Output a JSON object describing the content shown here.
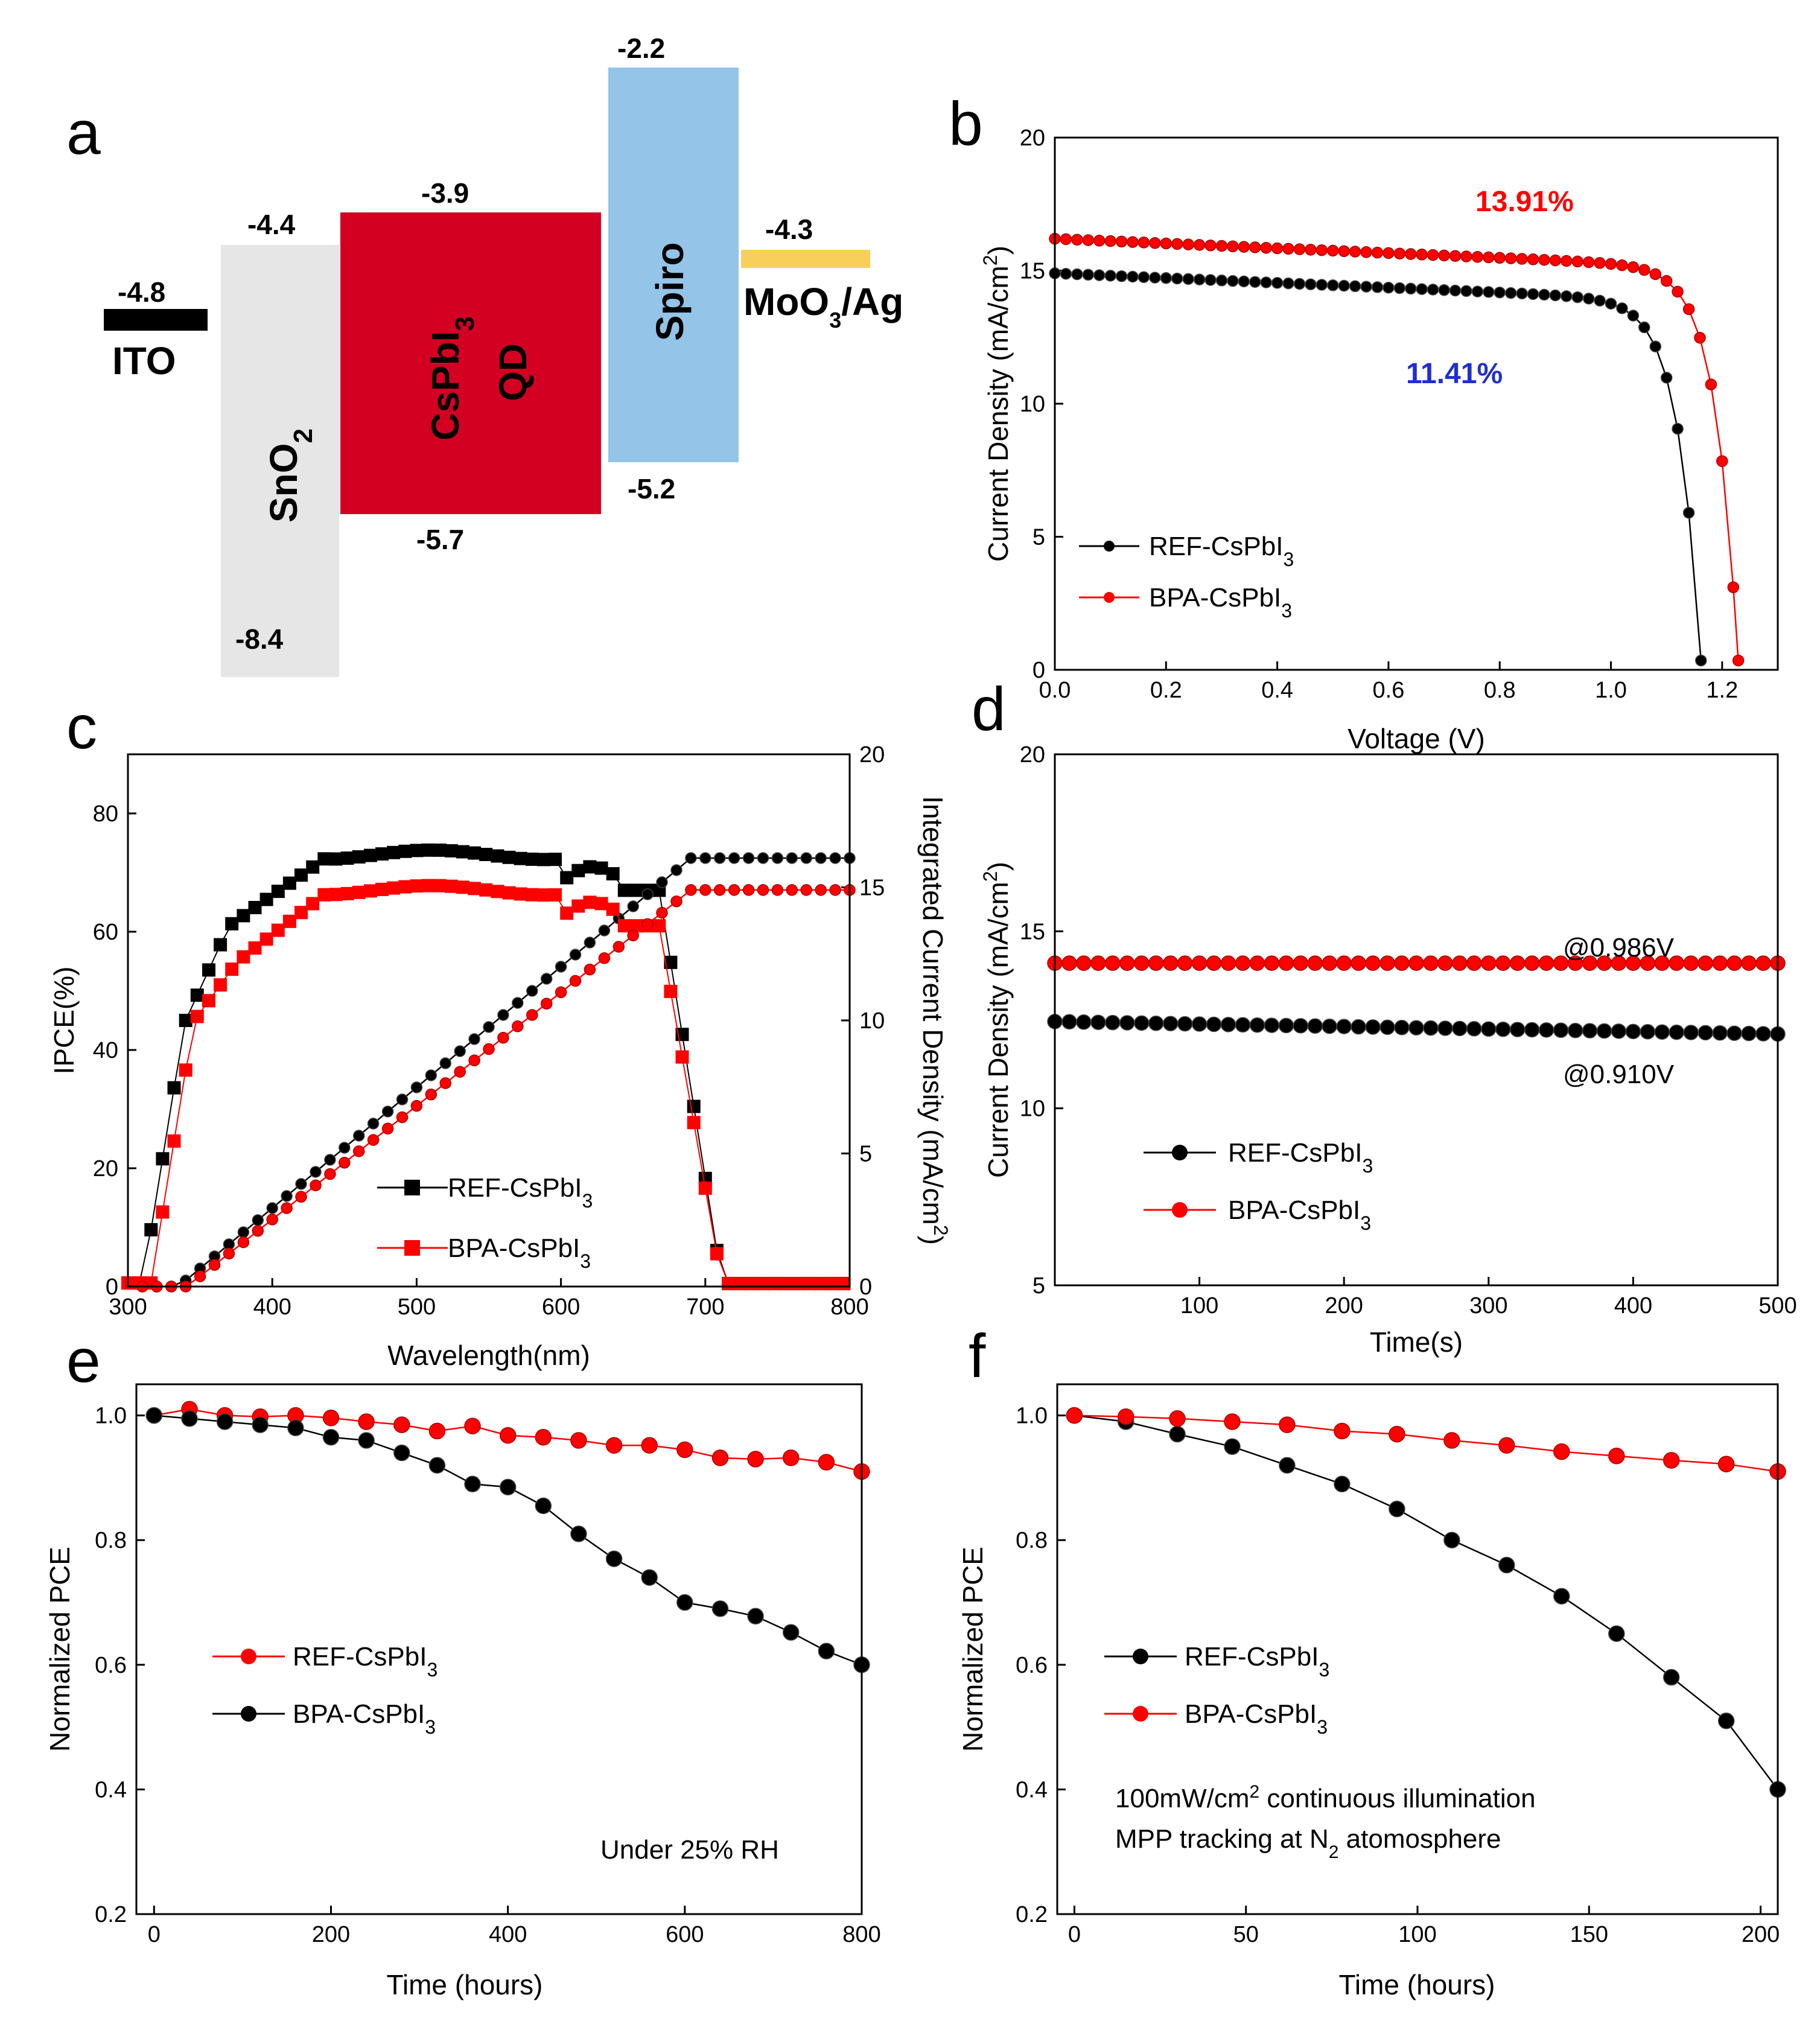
{
  "colors": {
    "ref": "#000000",
    "bpa": "#ff0000",
    "ito": "#000000",
    "sno2": "#e6e6e6",
    "qd": "#d40022",
    "spiro": "#94c4e8",
    "moo3": "#f7cf5a",
    "blue_label": "#1f2fd0"
  },
  "panel_a": {
    "label": "a",
    "layers": [
      {
        "name": "ITO",
        "level": "-4.8"
      },
      {
        "name": "SnO",
        "sub": "2",
        "top": "-4.4",
        "bottom": "-8.4"
      },
      {
        "name_line1": "CsPbI",
        "sub": "3",
        "name_line2": "QD",
        "top": "-3.9",
        "bottom": "-5.7"
      },
      {
        "name": "Spiro",
        "top": "-2.2",
        "bottom": "-5.2"
      },
      {
        "name": "MoO",
        "sub": "3",
        "suffix": "/Ag",
        "level": "-4.3"
      }
    ]
  },
  "chart_data": [
    {
      "id": "b",
      "type": "line",
      "label": "b",
      "xlabel": "Voltage (V)",
      "ylabel": "Current Density (mA/cm",
      "ylabel_sup": "2",
      "ylabel_end": ")",
      "xlim": [
        0,
        1.3
      ],
      "ylim": [
        0,
        20
      ],
      "xticks": [
        "0.0",
        "0.2",
        "0.4",
        "0.6",
        "0.8",
        "1.0",
        "1.2"
      ],
      "yticks": [
        "0",
        "5",
        "10",
        "15",
        "20"
      ],
      "annotations": [
        {
          "text": "13.91%",
          "color": "red"
        },
        {
          "text": "11.41%",
          "color": "blue"
        }
      ],
      "series": [
        {
          "name": "REF-CsPbI",
          "sub": "3",
          "voc": 1.165,
          "jsc": 14.9
        },
        {
          "name": "BPA-CsPbI",
          "sub": "3",
          "voc": 1.232,
          "jsc": 16.2
        }
      ]
    },
    {
      "id": "c",
      "type": "line",
      "label": "c",
      "xlabel": "Wavelength(nm)",
      "ylabel": "IPCE(%)",
      "ylabel_right": "Integrated Current Density (mA/cm",
      "ylabel_right_sup": "2",
      "ylabel_right_end": ")",
      "xlim": [
        300,
        800
      ],
      "ylim": [
        0,
        90
      ],
      "ylim_right": [
        0,
        20
      ],
      "xticks": [
        "300",
        "400",
        "500",
        "600",
        "700",
        "800"
      ],
      "yticks": [
        "0",
        "20",
        "40",
        "60",
        "80"
      ],
      "yticks_right": [
        "0",
        "5",
        "10",
        "15",
        "20"
      ],
      "series": [
        {
          "name": "REF-CsPbI",
          "sub": "3",
          "ipce_plateau": 73,
          "integrated_final": 16.1
        },
        {
          "name": "BPA-CsPbI",
          "sub": "3",
          "ipce_plateau": 67,
          "integrated_final": 14.9
        }
      ]
    },
    {
      "id": "d",
      "type": "scatter",
      "label": "d",
      "xlabel": "Time(s)",
      "ylabel": "Current Density (mA/cm",
      "ylabel_sup": "2",
      "ylabel_end": ")",
      "xlim": [
        0,
        500
      ],
      "ylim": [
        5,
        20
      ],
      "xticks": [
        "100",
        "200",
        "300",
        "400",
        "500"
      ],
      "yticks": [
        "5",
        "10",
        "15",
        "20"
      ],
      "annotations": [
        {
          "text": "@0.986V"
        },
        {
          "text": "@0.910V"
        }
      ],
      "series": [
        {
          "name": "REF-CsPbI",
          "sub": "3",
          "start": 12.45,
          "end": 12.1
        },
        {
          "name": "BPA-CsPbI",
          "sub": "3",
          "start": 14.1,
          "end": 14.1
        }
      ]
    },
    {
      "id": "e",
      "type": "line",
      "label": "e",
      "xlabel": "Time (hours)",
      "ylabel": "Normalized PCE",
      "xlim": [
        -20,
        800
      ],
      "ylim": [
        0.2,
        1.05
      ],
      "xticks": [
        "0",
        "200",
        "400",
        "600",
        "800"
      ],
      "yticks": [
        "0.2",
        "0.4",
        "0.6",
        "0.8",
        "1.0"
      ],
      "note": "Under 25% RH",
      "x": [
        0,
        40,
        80,
        120,
        160,
        200,
        240,
        280,
        320,
        360,
        400,
        440,
        480,
        520,
        560,
        600,
        640,
        680,
        720,
        760,
        800
      ],
      "series": [
        {
          "name": "REF-CsPbI",
          "sub": "3",
          "color": "red",
          "values": [
            1.0,
            1.01,
            1.0,
            0.998,
            1.0,
            0.996,
            0.99,
            0.985,
            0.975,
            0.983,
            0.968,
            0.965,
            0.96,
            0.952,
            0.952,
            0.945,
            0.932,
            0.93,
            0.932,
            0.925,
            0.91
          ]
        },
        {
          "name": "BPA-CsPbI",
          "sub": "3",
          "color": "black",
          "values": [
            1.0,
            0.995,
            0.99,
            0.985,
            0.98,
            0.965,
            0.96,
            0.94,
            0.92,
            0.89,
            0.885,
            0.855,
            0.81,
            0.77,
            0.74,
            0.7,
            0.69,
            0.678,
            0.652,
            0.622,
            0.6
          ]
        }
      ]
    },
    {
      "id": "f",
      "type": "line",
      "label": "f",
      "xlabel": "Time (hours)",
      "ylabel": "Normalized PCE",
      "xlim": [
        -5,
        205
      ],
      "ylim": [
        0.2,
        1.05
      ],
      "xticks": [
        "0",
        "50",
        "100",
        "150",
        "200"
      ],
      "yticks": [
        "0.2",
        "0.4",
        "0.6",
        "0.8",
        "1.0"
      ],
      "note_line1": "100mW/cm",
      "note_line1_sup": "2",
      "note_line1_end": " continuous illumination",
      "note_line2": "MPP  tracking at N",
      "note_line2_sub": "2",
      "note_line2_end": " atomosphere",
      "x": [
        0,
        15,
        30,
        46,
        62,
        78,
        94,
        110,
        126,
        142,
        158,
        174,
        190,
        205
      ],
      "series": [
        {
          "name": "REF-CsPbI",
          "sub": "3",
          "color": "black",
          "values": [
            1.0,
            0.99,
            0.97,
            0.95,
            0.92,
            0.89,
            0.85,
            0.8,
            0.76,
            0.71,
            0.65,
            0.58,
            0.51,
            0.4
          ]
        },
        {
          "name": "BPA-CsPbI",
          "sub": "3",
          "color": "red",
          "values": [
            1.0,
            0.998,
            0.995,
            0.99,
            0.985,
            0.975,
            0.97,
            0.96,
            0.952,
            0.942,
            0.935,
            0.928,
            0.922,
            0.91
          ]
        }
      ]
    }
  ]
}
